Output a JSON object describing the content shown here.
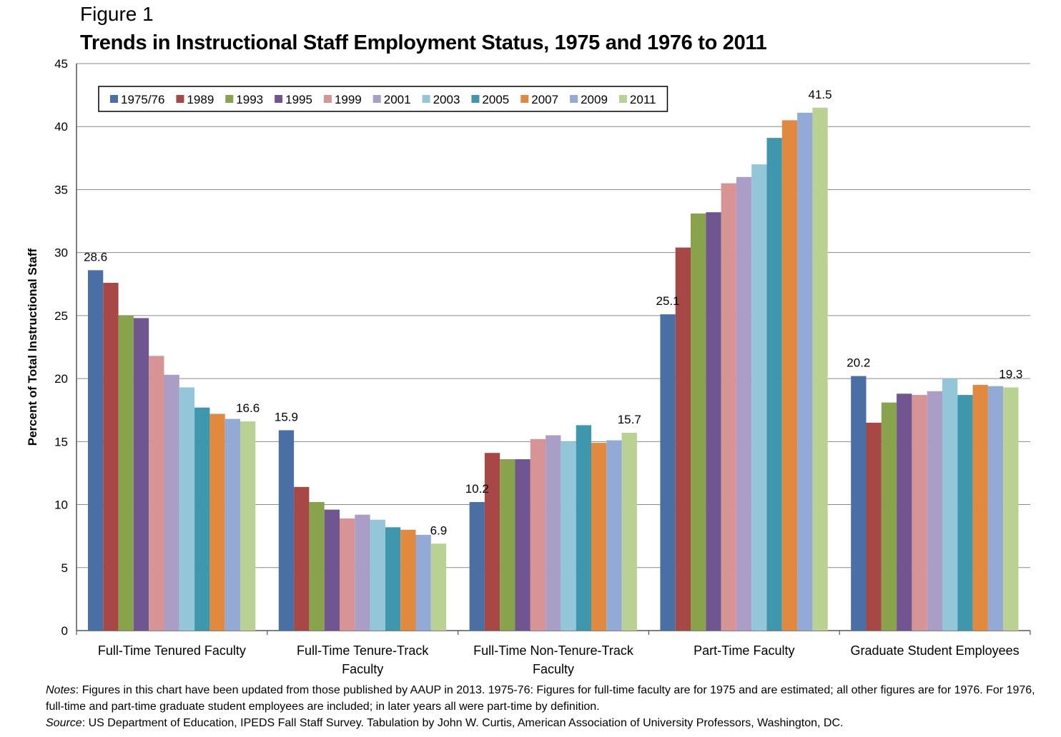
{
  "figure": {
    "label": "Figure 1",
    "title": "Trends in Instructional Staff Employment Status, 1975 and 1976 to 2011"
  },
  "notes": {
    "notes_label": "Notes",
    "notes_text": ": Figures in this chart have been updated from those published by AAUP in 2013. 1975-76: Figures for full-time faculty are for 1975 and are estimated; all other figures are for 1976. For 1976, full-time and part-time graduate student employees are included; in later years all were part-time by definition.",
    "source_label": "Source",
    "source_text": ": US Department of Education, IPEDS Fall Staff Survey. Tabulation by John W. Curtis, American Association of University Professors, Washington, DC."
  },
  "chart_data": {
    "type": "bar",
    "title": "Trends in Instructional Staff Employment Status, 1975 and 1976 to 2011",
    "xlabel": "",
    "ylabel": "Percent of Total Instructional Staff",
    "ylim": [
      0,
      45
    ],
    "yticks": [
      0,
      5,
      10,
      15,
      20,
      25,
      30,
      35,
      40,
      45
    ],
    "grid": true,
    "legend_position": "top-left",
    "categories": [
      [
        "Full-Time Tenured Faculty"
      ],
      [
        "Full-Time Tenure-Track",
        "Faculty"
      ],
      [
        "Full-Time Non-Tenure-Track",
        "Faculty"
      ],
      [
        "Part-Time Faculty"
      ],
      [
        "Graduate Student Employees"
      ]
    ],
    "series": [
      {
        "name": "1975/76",
        "color": "#4a6fa5",
        "values": [
          28.6,
          15.9,
          10.2,
          25.1,
          20.2
        ]
      },
      {
        "name": "1989",
        "color": "#a84846",
        "values": [
          27.6,
          11.4,
          14.1,
          30.4,
          16.5
        ]
      },
      {
        "name": "1993",
        "color": "#89a24c",
        "values": [
          25.0,
          10.2,
          13.6,
          33.1,
          18.1
        ]
      },
      {
        "name": "1995",
        "color": "#6f5690",
        "values": [
          24.8,
          9.6,
          13.6,
          33.2,
          18.8
        ]
      },
      {
        "name": "1999",
        "color": "#d69594",
        "values": [
          21.8,
          8.9,
          15.2,
          35.5,
          18.7
        ]
      },
      {
        "name": "2001",
        "color": "#ab9ec6",
        "values": [
          20.3,
          9.2,
          15.5,
          36.0,
          19.0
        ]
      },
      {
        "name": "2003",
        "color": "#93c6d8",
        "values": [
          19.3,
          8.8,
          15.0,
          37.0,
          20.0
        ]
      },
      {
        "name": "2005",
        "color": "#3f97ad",
        "values": [
          17.7,
          8.2,
          16.3,
          39.1,
          18.7
        ]
      },
      {
        "name": "2007",
        "color": "#e18a3f",
        "values": [
          17.2,
          8.0,
          14.9,
          40.5,
          19.5
        ]
      },
      {
        "name": "2009",
        "color": "#94aad6",
        "values": [
          16.8,
          7.6,
          15.1,
          41.1,
          19.4
        ]
      },
      {
        "name": "2011",
        "color": "#b9d294",
        "values": [
          16.6,
          6.9,
          15.7,
          41.5,
          19.3
        ]
      }
    ],
    "data_labels": [
      {
        "category": 0,
        "series": 0,
        "text": "28.6"
      },
      {
        "category": 0,
        "series": 10,
        "text": "16.6"
      },
      {
        "category": 1,
        "series": 0,
        "text": "15.9"
      },
      {
        "category": 1,
        "series": 10,
        "text": "6.9"
      },
      {
        "category": 2,
        "series": 0,
        "text": "10.2"
      },
      {
        "category": 2,
        "series": 10,
        "text": "15.7"
      },
      {
        "category": 3,
        "series": 0,
        "text": "25.1"
      },
      {
        "category": 3,
        "series": 10,
        "text": "41.5"
      },
      {
        "category": 4,
        "series": 0,
        "text": "20.2"
      },
      {
        "category": 4,
        "series": 10,
        "text": "19.3"
      }
    ]
  }
}
